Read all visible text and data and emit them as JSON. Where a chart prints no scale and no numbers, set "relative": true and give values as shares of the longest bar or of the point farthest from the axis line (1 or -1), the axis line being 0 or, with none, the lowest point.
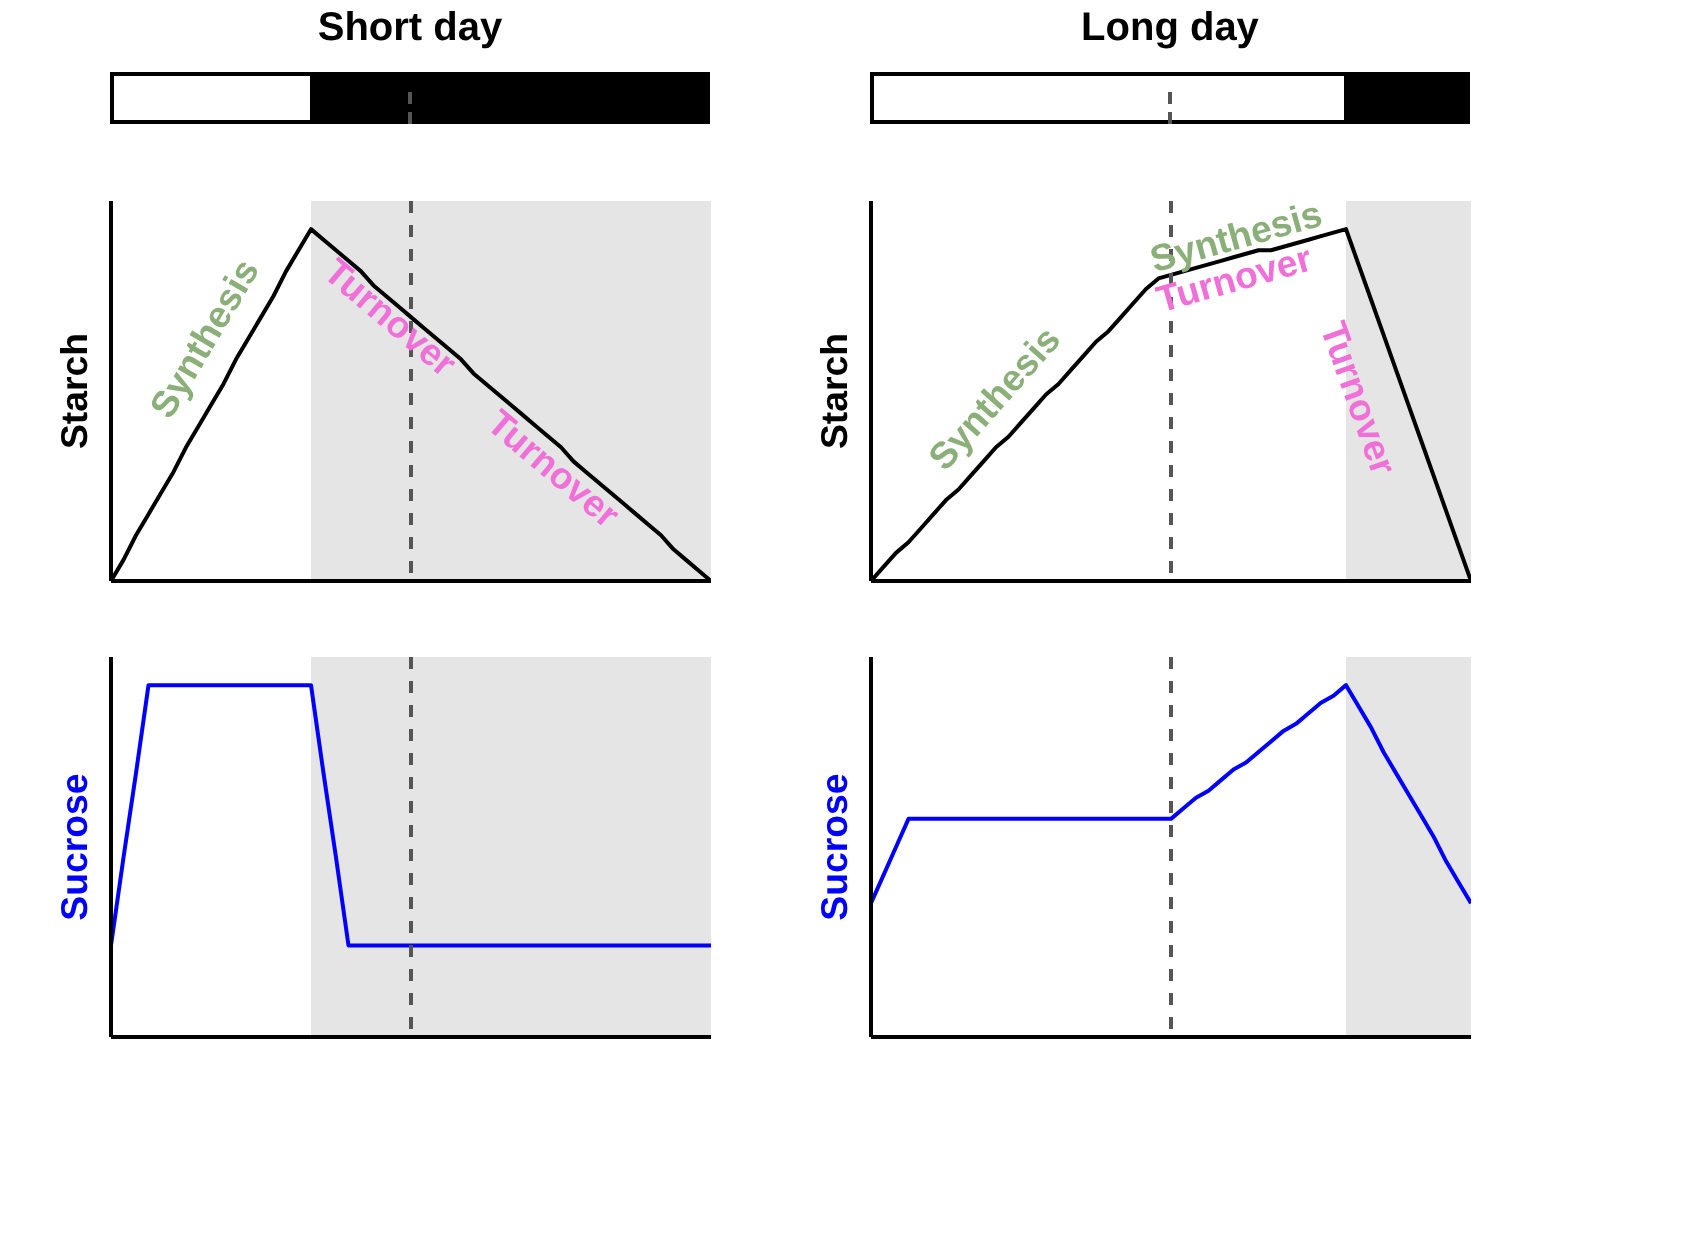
{
  "chart_data": [
    {
      "type": "line",
      "title": "Short day",
      "ylabel": "Starch",
      "relative": true,
      "categories": [
        null,
        null,
        null,
        null,
        null,
        null,
        null,
        null,
        null,
        null,
        null,
        null,
        null,
        null,
        null,
        null,
        null,
        null,
        null,
        null,
        null,
        null,
        null,
        null,
        null,
        null,
        null,
        null,
        null,
        null,
        null,
        null,
        null,
        null,
        null,
        null,
        null,
        null,
        null,
        null,
        null,
        null,
        null,
        null,
        null,
        null,
        null,
        null,
        null
      ],
      "series": [
        {
          "color": "#000000",
          "values": [
            0,
            0.06,
            0.13,
            0.19,
            0.25,
            0.31,
            0.38,
            0.44,
            0.5,
            0.56,
            0.63,
            0.69,
            0.75,
            0.81,
            0.88,
            0.94,
            1,
            0.97,
            0.94,
            0.91,
            0.88,
            0.84,
            0.81,
            0.78,
            0.75,
            0.72,
            0.69,
            0.66,
            0.63,
            0.59,
            0.56,
            0.53,
            0.5,
            0.47,
            0.44,
            0.41,
            0.38,
            0.34,
            0.31,
            0.28,
            0.25,
            0.22,
            0.19,
            0.16,
            0.13,
            0.09,
            0.06,
            0.03,
            0
          ]
        }
      ],
      "annotations": [
        "Synthesis",
        "Turnover",
        "Turnover"
      ]
    },
    {
      "type": "line",
      "title": "Long day",
      "ylabel": "Starch",
      "relative": true,
      "categories": [
        null,
        null,
        null,
        null,
        null,
        null,
        null,
        null,
        null,
        null,
        null,
        null,
        null,
        null,
        null,
        null,
        null,
        null,
        null,
        null,
        null,
        null,
        null,
        null,
        null,
        null,
        null,
        null,
        null,
        null,
        null,
        null,
        null,
        null,
        null,
        null,
        null,
        null,
        null,
        null,
        null,
        null,
        null,
        null,
        null,
        null,
        null,
        null,
        null
      ],
      "series": [
        {
          "color": "#000000",
          "values": [
            0,
            0.04,
            0.08,
            0.11,
            0.15,
            0.19,
            0.23,
            0.26,
            0.3,
            0.34,
            0.38,
            0.41,
            0.45,
            0.49,
            0.53,
            0.56,
            0.6,
            0.64,
            0.68,
            0.71,
            0.75,
            0.79,
            0.83,
            0.86,
            0.87,
            0.88,
            0.89,
            0.9,
            0.91,
            0.92,
            0.93,
            0.94,
            0.94,
            0.95,
            0.96,
            0.97,
            0.98,
            0.99,
            1,
            0.9,
            0.8,
            0.7,
            0.6,
            0.5,
            0.4,
            0.3,
            0.2,
            0.1,
            0
          ]
        }
      ],
      "annotations": [
        "Synthesis",
        "Synthesis",
        "Turnover",
        "Turnover"
      ]
    },
    {
      "type": "line",
      "ylabel": "Sucrose",
      "relative": true,
      "categories": [
        null,
        null,
        null,
        null,
        null,
        null,
        null,
        null,
        null,
        null,
        null,
        null,
        null,
        null,
        null,
        null,
        null,
        null,
        null,
        null,
        null,
        null,
        null,
        null,
        null,
        null,
        null,
        null,
        null,
        null,
        null,
        null,
        null,
        null,
        null,
        null,
        null,
        null,
        null,
        null,
        null,
        null,
        null,
        null,
        null,
        null,
        null,
        null,
        null
      ],
      "series": [
        {
          "color": "#0000ff",
          "values": [
            0.26,
            0.51,
            0.75,
            1,
            1,
            1,
            1,
            1,
            1,
            1,
            1,
            1,
            1,
            1,
            1,
            1,
            1,
            0.75,
            0.51,
            0.26,
            0.26,
            0.26,
            0.26,
            0.26,
            0.26,
            0.26,
            0.26,
            0.26,
            0.26,
            0.26,
            0.26,
            0.26,
            0.26,
            0.26,
            0.26,
            0.26,
            0.26,
            0.26,
            0.26,
            0.26,
            0.26,
            0.26,
            0.26,
            0.26,
            0.26,
            0.26,
            0.26,
            0.26,
            0.26
          ]
        }
      ]
    },
    {
      "type": "line",
      "ylabel": "Sucrose",
      "relative": true,
      "categories": [
        null,
        null,
        null,
        null,
        null,
        null,
        null,
        null,
        null,
        null,
        null,
        null,
        null,
        null,
        null,
        null,
        null,
        null,
        null,
        null,
        null,
        null,
        null,
        null,
        null,
        null,
        null,
        null,
        null,
        null,
        null,
        null,
        null,
        null,
        null,
        null,
        null,
        null,
        null,
        null,
        null,
        null,
        null,
        null,
        null,
        null,
        null,
        null,
        null
      ],
      "series": [
        {
          "color": "#0000ff",
          "values": [
            0.38,
            0.46,
            0.54,
            0.62,
            0.62,
            0.62,
            0.62,
            0.62,
            0.62,
            0.62,
            0.62,
            0.62,
            0.62,
            0.62,
            0.62,
            0.62,
            0.62,
            0.62,
            0.62,
            0.62,
            0.62,
            0.62,
            0.62,
            0.62,
            0.62,
            0.65,
            0.68,
            0.7,
            0.73,
            0.76,
            0.78,
            0.81,
            0.84,
            0.87,
            0.89,
            0.92,
            0.95,
            0.97,
            1,
            0.94,
            0.88,
            0.81,
            0.75,
            0.69,
            0.63,
            0.57,
            0.5,
            0.44,
            0.38
          ]
        }
      ]
    }
  ]
}
